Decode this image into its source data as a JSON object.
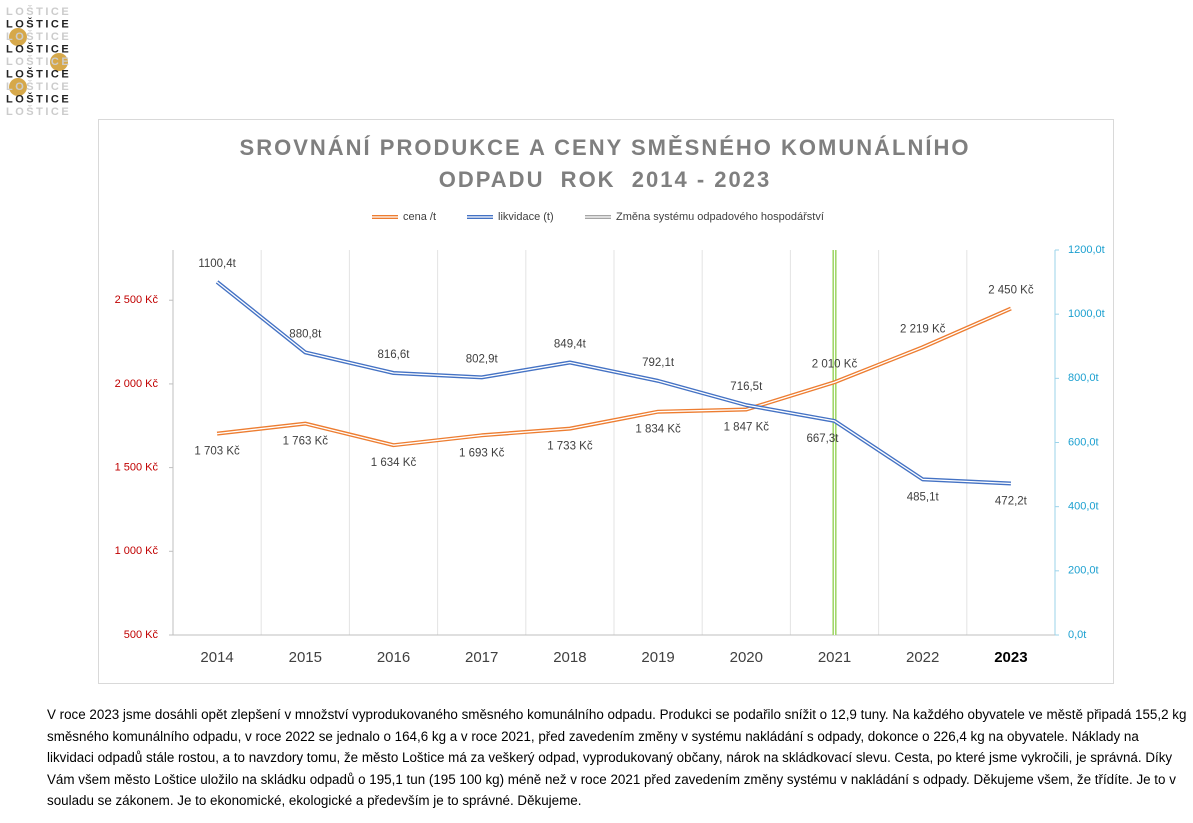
{
  "logo": {
    "rows": [
      "LOŠTICE",
      "LOŠTICE",
      "LOŠTICE",
      "LOŠTICE",
      "LOŠTICE",
      "LOŠTICE",
      "LOŠTICE",
      "LOŠTICE",
      "LOŠTICE"
    ]
  },
  "chart_data": {
    "type": "line",
    "title": "SROVNÁNÍ PRODUKCE A CENY SMĚSNÉHO KOMUNÁLNÍHO ODPADU  ROK  2014 - 2023",
    "categories": [
      "2014",
      "2015",
      "2016",
      "2017",
      "2018",
      "2019",
      "2020",
      "2021",
      "2022",
      "2023"
    ],
    "series": [
      {
        "name": "cena /t",
        "color": "#ed7d31",
        "axis": "y",
        "values": [
          1703,
          1763,
          1634,
          1693,
          1733,
          1834,
          1847,
          2010,
          2219,
          2450
        ],
        "value_labels": [
          "1 703 Kč",
          "1 763 Kč",
          "1 634 Kč",
          "1 693 Kč",
          "1 733 Kč",
          "1 834 Kč",
          "1 847 Kč",
          "2 010 Kč",
          "2 219 Kč",
          "2 450 Kč"
        ]
      },
      {
        "name": "likvidace (t)",
        "color": "#4472c4",
        "axis": "y2",
        "values": [
          1100.4,
          880.8,
          816.6,
          802.9,
          849.4,
          792.1,
          716.5,
          667.3,
          485.1,
          472.2
        ],
        "value_labels": [
          "1100,4t",
          "880,8t",
          "816,6t",
          "802,9t",
          "849,4t",
          "792,1t",
          "716,5t",
          "667,3t",
          "485,1t",
          "472,2t"
        ]
      }
    ],
    "marker": {
      "name": "Změna systému odpadového hospodářství",
      "color": "#92d050",
      "x": "2021"
    },
    "ylim": [
      500,
      2800
    ],
    "yticks": [
      {
        "value": 500,
        "label": "500 Kč"
      },
      {
        "value": 1000,
        "label": "1 000 Kč"
      },
      {
        "value": 1500,
        "label": "1 500 Kč"
      },
      {
        "value": 2000,
        "label": "2 000 Kč"
      },
      {
        "value": 2500,
        "label": "2 500 Kč"
      }
    ],
    "y2lim": [
      0,
      1200
    ],
    "y2ticks": [
      {
        "value": 0,
        "label": "0,0t"
      },
      {
        "value": 200,
        "label": "200,0t"
      },
      {
        "value": 400,
        "label": "400,0t"
      },
      {
        "value": 600,
        "label": "600,0t"
      },
      {
        "value": 800,
        "label": "800,0t"
      },
      {
        "value": 1000,
        "label": "1000,0t"
      },
      {
        "value": 1200,
        "label": "1200,0t"
      }
    ],
    "grid": true
  },
  "caption": "V roce 2023 jsme dosáhli opět zlepšení v množství vyprodukovaného směsného komunálního odpadu. Produkci se podařilo snížit o 12,9 tuny. Na každého obyvatele ve městě připadá 155,2 kg směsného komunálního odpadu, v roce 2022 se jednalo o 164,6 kg a v roce 2021, před zavedením změny v systému nakládání s odpady, dokonce o 226,4 kg na obyvatele. Náklady na likvidaci odpadů stále rostou, a to navzdory tomu, že město Loštice má za veškerý odpad, vyprodukovaný občany, nárok na skládkovací slevu. Cesta, po které jsme vykročili, je správná. Díky Vám všem město Loštice uložilo na skládku odpadů o 195,1 tun (195 100 kg) méně než v roce 2021 před zavedením změny systému v nakládání s odpady. Děkujeme všem, že třídíte. Je to v souladu se zákonem. Je to ekonomické, ekologické a především je to správné.  Děkujeme."
}
